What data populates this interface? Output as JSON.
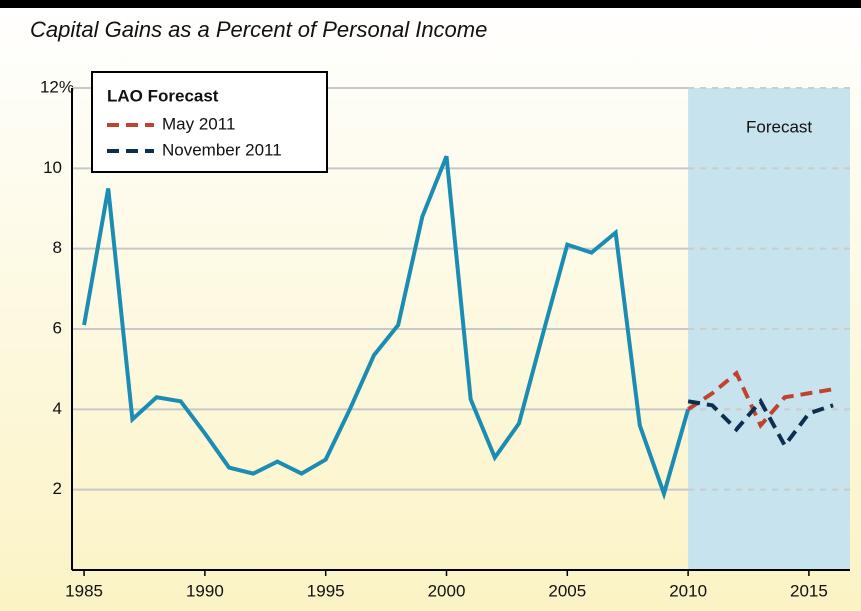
{
  "chart_data": {
    "type": "line",
    "title": "Capital Gains as a Percent of Personal Income",
    "annotation": "Forecast",
    "forecast_start": 2010,
    "legend_title": "LAO Forecast",
    "legend": "upper left",
    "grid": true,
    "x": [
      1985,
      1986,
      1987,
      1988,
      1989,
      1990,
      1991,
      1992,
      1993,
      1994,
      1995,
      1996,
      1997,
      1998,
      1999,
      2000,
      2001,
      2002,
      2003,
      2004,
      2005,
      2006,
      2007,
      2008,
      2009,
      2010,
      2011,
      2012,
      2013,
      2014,
      2015,
      2016
    ],
    "xlim": [
      1984.5,
      2016.7
    ],
    "xticks": [
      1985,
      1990,
      1995,
      2000,
      2005,
      2010,
      2015
    ],
    "ylim": [
      0,
      12
    ],
    "yticks": [
      2,
      4,
      6,
      8,
      10,
      {
        "value": 12,
        "label": "12%"
      }
    ],
    "series": [
      {
        "name": null,
        "color": "#1b8db3",
        "dash": false,
        "values": [
          6.1,
          9.5,
          3.75,
          4.3,
          4.2,
          3.4,
          2.55,
          2.4,
          2.7,
          2.4,
          2.75,
          4.0,
          5.35,
          6.1,
          8.8,
          10.3,
          4.25,
          2.8,
          3.65,
          5.9,
          8.1,
          7.9,
          8.4,
          3.6,
          1.9,
          4.0,
          null,
          null,
          null,
          null,
          null,
          null
        ]
      },
      {
        "name": "May 2011",
        "color": "#c0432f",
        "dash": true,
        "values": [
          null,
          null,
          null,
          null,
          null,
          null,
          null,
          null,
          null,
          null,
          null,
          null,
          null,
          null,
          null,
          null,
          null,
          null,
          null,
          null,
          null,
          null,
          null,
          null,
          null,
          4.0,
          4.4,
          4.9,
          3.6,
          4.3,
          4.4,
          4.5
        ]
      },
      {
        "name": "November 2011",
        "color": "#0d2f4f",
        "dash": true,
        "values": [
          null,
          null,
          null,
          null,
          null,
          null,
          null,
          null,
          null,
          null,
          null,
          null,
          null,
          null,
          null,
          null,
          null,
          null,
          null,
          null,
          null,
          null,
          null,
          null,
          null,
          4.2,
          4.1,
          3.5,
          4.2,
          3.1,
          3.9,
          4.1
        ]
      }
    ]
  }
}
